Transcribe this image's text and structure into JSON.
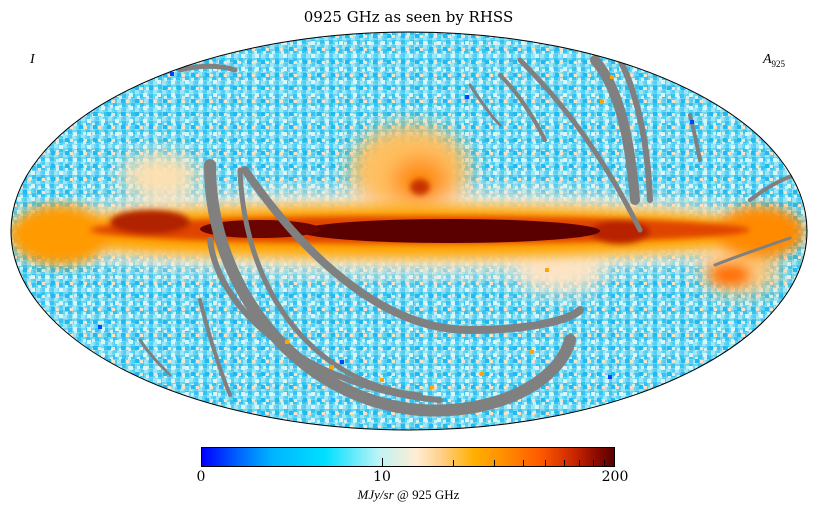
{
  "title": "0925 GHz as seen by RHSS",
  "corner_left_label": "I",
  "corner_right_label": {
    "main": "A",
    "sub": "925"
  },
  "colorbar": {
    "min_label": "0",
    "mid_label": "10",
    "max_label": "200",
    "unit_italic": "MJy/sr",
    "unit_rest": "@ 925 GHz"
  },
  "colors": {
    "background": "#ffffff",
    "sky_base": "#6fd8f2",
    "galactic_plane_dark": "#5a0000",
    "galactic_plane_orange": "#ff8a00",
    "mask_gray": "#808080"
  }
}
